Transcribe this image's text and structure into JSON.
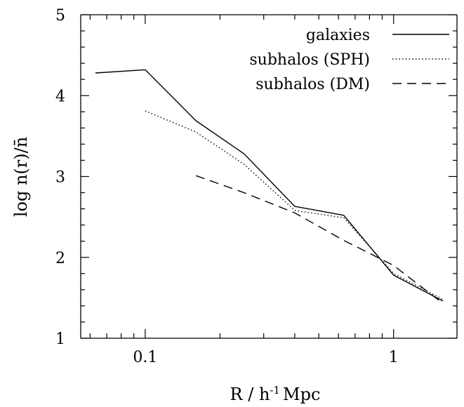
{
  "chart_data": {
    "type": "line",
    "xscale": "log",
    "xlim": [
      0.055,
      1.8
    ],
    "ylim": [
      1,
      5
    ],
    "grid": false,
    "xlabel_prefix": "R  /  h",
    "xlabel_exponent": "-1",
    "xlabel_suffix": "Mpc",
    "ylabel": "log n(r)/n̄",
    "x_ticks_major": [
      0.1,
      1
    ],
    "x_tick_labels": [
      "0.1",
      "1"
    ],
    "x_ticks_minor": [
      0.06,
      0.07,
      0.08,
      0.09,
      0.2,
      0.3,
      0.4,
      0.5,
      0.6,
      0.7,
      0.8,
      0.9
    ],
    "y_ticks_major": [
      1,
      2,
      3,
      4,
      5
    ],
    "y_tick_labels": [
      "1",
      "2",
      "3",
      "4",
      "5"
    ],
    "legend_position": "top-right",
    "series": [
      {
        "name": "galaxies",
        "style": "solid",
        "x": [
          0.063,
          0.1,
          0.16,
          0.25,
          0.4,
          0.63,
          1.0,
          1.58
        ],
        "y": [
          4.28,
          4.32,
          3.69,
          3.28,
          2.63,
          2.52,
          1.78,
          1.46
        ]
      },
      {
        "name": "subhalos (SPH)",
        "style": "dotted",
        "x": [
          0.1,
          0.16,
          0.25,
          0.4,
          0.63,
          1.0,
          1.58
        ],
        "y": [
          3.81,
          3.55,
          3.15,
          2.58,
          2.49,
          1.8,
          1.48
        ]
      },
      {
        "name": "subhalos (DM)",
        "style": "dashed",
        "x": [
          0.16,
          0.25,
          0.4,
          0.63,
          1.0,
          1.58
        ],
        "y": [
          3.01,
          2.8,
          2.55,
          2.21,
          1.9,
          1.43
        ]
      }
    ]
  }
}
